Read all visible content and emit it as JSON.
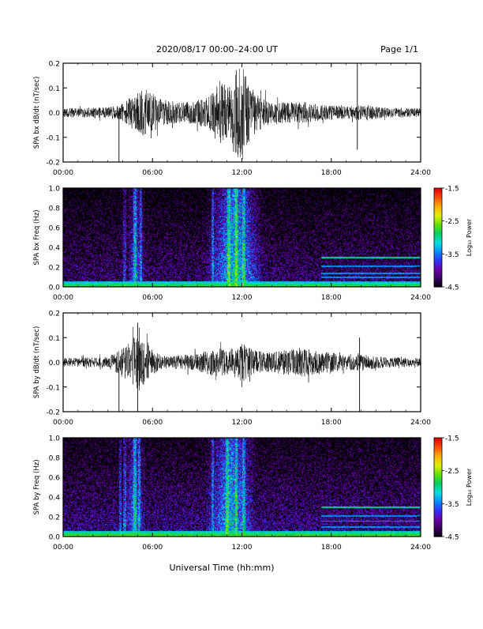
{
  "header": {
    "title": "2020/08/17  00:00–24:00 UT",
    "page": "Page 1/1"
  },
  "footer": {
    "xlabel": "Universal Time (hh:mm)"
  },
  "colorbar": {
    "label": "Log₁₀ Power",
    "ticks": [
      "-1.5",
      "-2.5",
      "-3.5",
      "-4.5"
    ],
    "range": [
      -4.5,
      -1.5
    ],
    "colormap": [
      "#000000",
      "#3a0060",
      "#6a00a8",
      "#3030ff",
      "#0090ff",
      "#00e0e0",
      "#00d060",
      "#60e000",
      "#e0f000",
      "#ffb000",
      "#ff5000",
      "#e00000"
    ]
  },
  "chart_data": [
    {
      "type": "line",
      "title": "",
      "ylabel": "SPA bx dB/dt (nT/sec)",
      "xlabel": "",
      "xlim": [
        "00:00",
        "24:00"
      ],
      "ylim": [
        -0.2,
        0.2
      ],
      "x_ticks": [
        "00:00",
        "06:00",
        "12:00",
        "18:00",
        "24:00"
      ],
      "y_ticks": [
        "0.2",
        "0.1",
        "0.0",
        "-0.1",
        "-0.2"
      ],
      "series_color": "#000000",
      "x_hours": [
        0,
        1,
        2,
        3,
        3.8,
        4.5,
        5,
        5.5,
        6,
        6.5,
        7,
        8,
        9,
        9.8,
        10.5,
        11,
        11.5,
        12,
        12.5,
        13,
        13.5,
        14,
        15,
        16,
        17,
        18,
        19,
        19.8,
        20.5,
        21,
        22,
        23,
        24
      ],
      "envelope": [
        0.018,
        0.02,
        0.02,
        0.022,
        0.03,
        0.06,
        0.08,
        0.1,
        0.08,
        0.06,
        0.05,
        0.04,
        0.05,
        0.07,
        0.14,
        0.1,
        0.17,
        0.2,
        0.12,
        0.08,
        0.06,
        0.05,
        0.04,
        0.045,
        0.035,
        0.03,
        0.025,
        0.03,
        0.03,
        0.025,
        0.02,
        0.02,
        0.018
      ],
      "spikes": [
        {
          "x": 3.75,
          "y": -0.2
        },
        {
          "x": 19.75,
          "y": 0.2
        },
        {
          "x": 19.75,
          "y": -0.15
        }
      ]
    },
    {
      "type": "heatmap",
      "title": "",
      "ylabel": "SPA bx Freq (Hz)",
      "xlim": [
        "00:00",
        "24:00"
      ],
      "ylim": [
        0.0,
        1.0
      ],
      "x_ticks": [
        "00:00",
        "06:00",
        "12:00",
        "18:00",
        "24:00"
      ],
      "y_ticks": [
        "1.0",
        "0.8",
        "0.6",
        "0.4",
        "0.2",
        "0.0"
      ],
      "quiet_level": -4.2,
      "low_freq_band": {
        "freq_max": 0.06,
        "level": -2.6
      },
      "active_intervals": [
        {
          "start": 4.2,
          "end": 5.5,
          "level": -3.5
        },
        {
          "start": 9.5,
          "end": 13.5,
          "level": -3.0
        }
      ],
      "vertical_streaks": [
        4.1,
        4.8,
        5.2,
        10.0,
        11.1,
        11.6,
        12.1
      ],
      "harmonic_lines": {
        "start": 17.3,
        "end": 24.0,
        "freqs": [
          0.3,
          0.21,
          0.14,
          0.1
        ],
        "level": -3.4
      }
    },
    {
      "type": "line",
      "title": "",
      "ylabel": "SPA by dB/dt (nT/sec)",
      "xlabel": "",
      "xlim": [
        "00:00",
        "24:00"
      ],
      "ylim": [
        -0.2,
        0.2
      ],
      "x_ticks": [
        "00:00",
        "06:00",
        "12:00",
        "18:00",
        "24:00"
      ],
      "y_ticks": [
        "0.2",
        "0.1",
        "0.0",
        "-0.1",
        "-0.2"
      ],
      "series_color": "#000000",
      "x_hours": [
        0,
        1,
        2,
        3,
        3.8,
        4.5,
        5,
        5.5,
        6,
        6.5,
        7,
        8,
        9,
        9.8,
        10.5,
        11,
        11.5,
        12,
        12.5,
        13,
        13.5,
        14,
        15,
        16,
        17,
        18,
        19,
        19.8,
        20.5,
        21,
        22,
        23,
        24
      ],
      "envelope": [
        0.018,
        0.018,
        0.02,
        0.025,
        0.05,
        0.08,
        0.12,
        0.09,
        0.05,
        0.03,
        0.025,
        0.03,
        0.035,
        0.05,
        0.06,
        0.05,
        0.06,
        0.08,
        0.06,
        0.05,
        0.04,
        0.04,
        0.05,
        0.06,
        0.05,
        0.04,
        0.03,
        0.04,
        0.03,
        0.025,
        0.02,
        0.02,
        0.018
      ],
      "spikes": [
        {
          "x": 3.75,
          "y": -0.2
        },
        {
          "x": 5.0,
          "y": 0.16
        },
        {
          "x": 5.0,
          "y": -0.2
        },
        {
          "x": 19.9,
          "y": 0.1
        },
        {
          "x": 19.9,
          "y": -0.2
        }
      ]
    },
    {
      "type": "heatmap",
      "title": "",
      "ylabel": "SPA by Freq (Hz)",
      "xlim": [
        "00:00",
        "24:00"
      ],
      "ylim": [
        0.0,
        1.0
      ],
      "x_ticks": [
        "00:00",
        "06:00",
        "12:00",
        "18:00",
        "24:00"
      ],
      "y_ticks": [
        "1.0",
        "0.8",
        "0.6",
        "0.4",
        "0.2",
        "0.0"
      ],
      "quiet_level": -4.1,
      "low_freq_band": {
        "freq_max": 0.06,
        "level": -2.5
      },
      "active_intervals": [
        {
          "start": 4.0,
          "end": 5.5,
          "level": -3.4
        },
        {
          "start": 9.5,
          "end": 13.0,
          "level": -3.1
        }
      ],
      "vertical_streaks": [
        3.8,
        4.1,
        4.8,
        5.1,
        10.0,
        11.0,
        11.6,
        12.1
      ],
      "harmonic_lines": {
        "start": 17.3,
        "end": 24.0,
        "freqs": [
          0.3,
          0.21,
          0.16,
          0.1
        ],
        "level": -3.4
      }
    }
  ]
}
